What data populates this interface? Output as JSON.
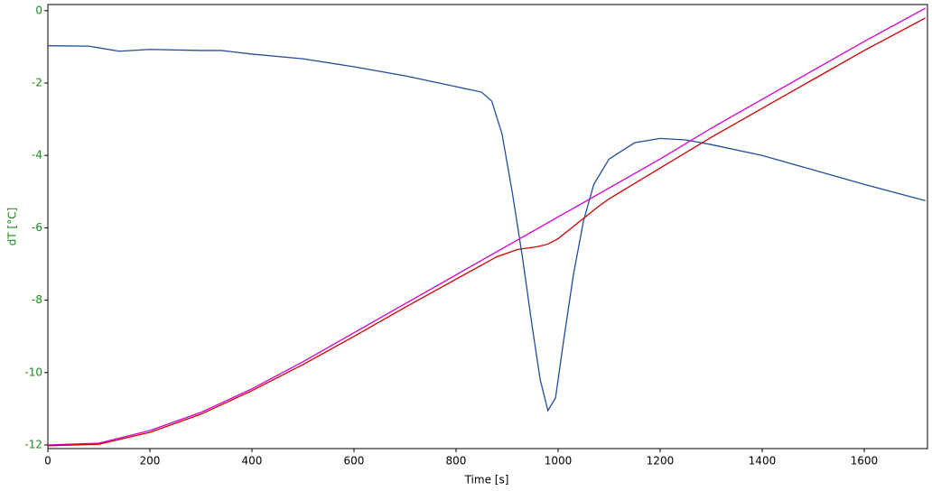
{
  "chart_data": {
    "type": "line",
    "xlabel": "Time [s]",
    "ylabel": "dT [°C]",
    "xlim": [
      0,
      1724
    ],
    "ylim": [
      -12.1,
      0.17
    ],
    "xticks": [
      0,
      200,
      400,
      600,
      800,
      1000,
      1200,
      1400,
      1600
    ],
    "yticks": [
      0,
      -2,
      -4,
      -6,
      -8,
      -10,
      -12
    ],
    "grid": false,
    "series": [
      {
        "color": "#1f4e9a",
        "x": [
          0,
          80,
          140,
          200,
          300,
          340,
          400,
          500,
          600,
          700,
          800,
          850,
          870,
          890,
          910,
          930,
          950,
          965,
          980,
          995,
          1010,
          1030,
          1050,
          1070,
          1100,
          1150,
          1200,
          1250,
          1300,
          1400,
          1500,
          1600,
          1720
        ],
        "values": [
          -0.97,
          -0.98,
          -1.12,
          -1.07,
          -1.1,
          -1.1,
          -1.2,
          -1.33,
          -1.55,
          -1.8,
          -2.1,
          -2.25,
          -2.5,
          -3.4,
          -5.0,
          -6.8,
          -8.8,
          -10.2,
          -11.05,
          -10.7,
          -9.2,
          -7.3,
          -5.8,
          -4.8,
          -4.1,
          -3.65,
          -3.53,
          -3.57,
          -3.7,
          -4.0,
          -4.4,
          -4.8,
          -5.25
        ]
      },
      {
        "color": "#d000d0",
        "x": [
          0,
          100,
          200,
          300,
          400,
          500,
          600,
          700,
          800,
          900,
          1000,
          1100,
          1200,
          1300,
          1400,
          1500,
          1600,
          1720
        ],
        "values": [
          -12.0,
          -11.95,
          -11.6,
          -11.1,
          -10.45,
          -9.7,
          -8.9,
          -8.1,
          -7.3,
          -6.5,
          -5.7,
          -4.9,
          -4.1,
          -3.25,
          -2.45,
          -1.65,
          -0.85,
          0.07
        ]
      },
      {
        "color": "#cc0000",
        "x": [
          0,
          100,
          200,
          300,
          400,
          500,
          600,
          700,
          800,
          880,
          920,
          960,
          980,
          1000,
          1040,
          1080,
          1100,
          1200,
          1300,
          1400,
          1500,
          1600,
          1720
        ],
        "values": [
          -12.02,
          -11.98,
          -11.65,
          -11.15,
          -10.5,
          -9.78,
          -9.0,
          -8.2,
          -7.42,
          -6.8,
          -6.6,
          -6.52,
          -6.45,
          -6.3,
          -5.85,
          -5.4,
          -5.2,
          -4.35,
          -3.5,
          -2.7,
          -1.9,
          -1.1,
          -0.2
        ]
      }
    ]
  }
}
